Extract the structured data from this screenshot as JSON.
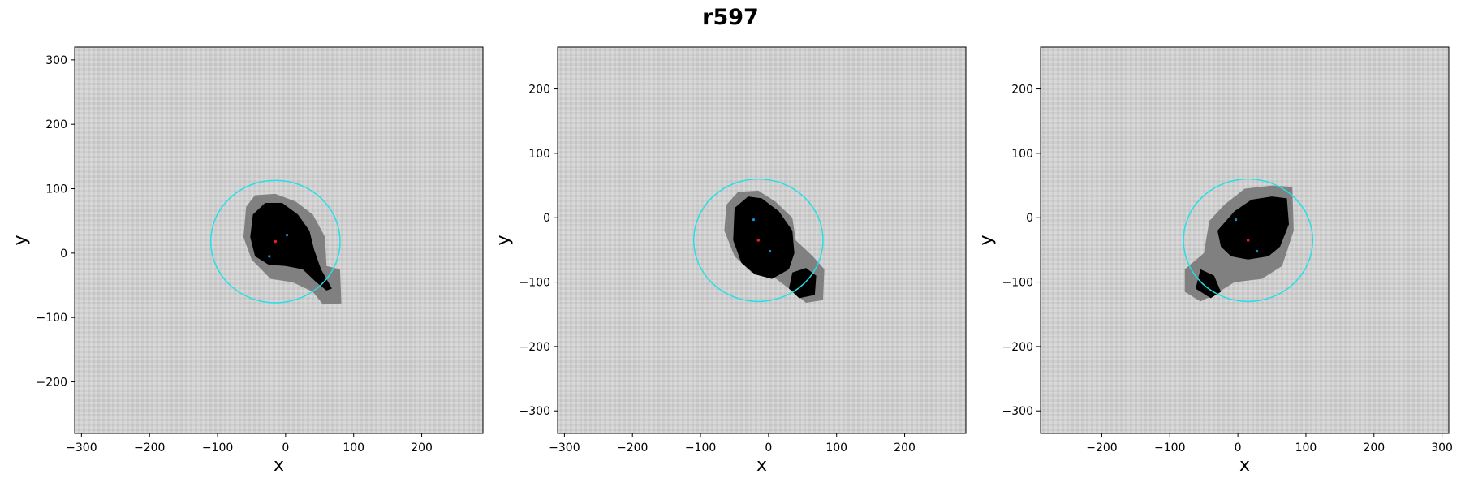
{
  "title": "r597",
  "colors": {
    "background_gray": "#cfcfcf",
    "mask_gray": "#808080",
    "blob_black": "#000000",
    "circle_cyan": "#22e0e8",
    "center_red": "#e02020",
    "marker_blue": "#1f8fd0"
  },
  "chart_data": [
    {
      "type": "scatter",
      "xlabel": "x",
      "ylabel": "y",
      "xlim": [
        -310,
        290
      ],
      "ylim": [
        -280,
        320
      ],
      "xticks": [
        -300,
        -200,
        -100,
        0,
        100,
        200
      ],
      "yticks": [
        300,
        200,
        100,
        0,
        -100,
        -200
      ],
      "circle": {
        "cx": -15,
        "cy": 18,
        "r": 95
      },
      "center_point": [
        -15,
        18
      ],
      "markers": [
        [
          2,
          28
        ],
        [
          -24,
          -5
        ]
      ],
      "mask": [
        [
          -58,
          72
        ],
        [
          -45,
          90
        ],
        [
          -15,
          92
        ],
        [
          15,
          80
        ],
        [
          40,
          60
        ],
        [
          58,
          25
        ],
        [
          60,
          -20
        ],
        [
          80,
          -25
        ],
        [
          82,
          -78
        ],
        [
          55,
          -80
        ],
        [
          40,
          -60
        ],
        [
          10,
          -45
        ],
        [
          -22,
          -40
        ],
        [
          -50,
          -10
        ],
        [
          -62,
          25
        ]
      ],
      "blob": [
        [
          -48,
          60
        ],
        [
          -30,
          78
        ],
        [
          -5,
          78
        ],
        [
          18,
          60
        ],
        [
          35,
          35
        ],
        [
          42,
          5
        ],
        [
          52,
          -25
        ],
        [
          68,
          -55
        ],
        [
          60,
          -58
        ],
        [
          45,
          -45
        ],
        [
          25,
          -25
        ],
        [
          0,
          -20
        ],
        [
          -25,
          -18
        ],
        [
          -45,
          -5
        ],
        [
          -52,
          25
        ]
      ]
    },
    {
      "type": "scatter",
      "xlabel": "x",
      "ylabel": "y",
      "xlim": [
        -310,
        290
      ],
      "ylim": [
        -335,
        265
      ],
      "xticks": [
        -300,
        -200,
        -100,
        0,
        100,
        200
      ],
      "yticks": [
        200,
        100,
        0,
        -100,
        -200,
        -300
      ],
      "circle": {
        "cx": -15,
        "cy": -35,
        "r": 95
      },
      "center_point": [
        -15,
        -35
      ],
      "markers": [
        [
          -22,
          -3
        ],
        [
          2,
          -52
        ]
      ],
      "mask": [
        [
          -62,
          20
        ],
        [
          -45,
          40
        ],
        [
          -15,
          42
        ],
        [
          10,
          25
        ],
        [
          35,
          0
        ],
        [
          40,
          -35
        ],
        [
          65,
          -60
        ],
        [
          82,
          -80
        ],
        [
          80,
          -128
        ],
        [
          55,
          -132
        ],
        [
          30,
          -110
        ],
        [
          5,
          -90
        ],
        [
          -25,
          -85
        ],
        [
          -50,
          -60
        ],
        [
          -65,
          -20
        ]
      ],
      "blob": [
        [
          -50,
          15
        ],
        [
          -30,
          33
        ],
        [
          -10,
          30
        ],
        [
          15,
          10
        ],
        [
          35,
          -20
        ],
        [
          38,
          -55
        ],
        [
          30,
          -80
        ],
        [
          5,
          -95
        ],
        [
          -20,
          -88
        ],
        [
          -40,
          -70
        ],
        [
          -52,
          -35
        ]
      ],
      "blob2": [
        [
          35,
          -85
        ],
        [
          55,
          -78
        ],
        [
          70,
          -90
        ],
        [
          68,
          -120
        ],
        [
          45,
          -125
        ],
        [
          30,
          -110
        ]
      ]
    },
    {
      "type": "scatter",
      "xlabel": "x",
      "ylabel": "y",
      "xlim": [
        -290,
        310
      ],
      "ylim": [
        -335,
        265
      ],
      "xticks": [
        -200,
        -100,
        0,
        100,
        200,
        300
      ],
      "yticks": [
        200,
        100,
        0,
        -100,
        -200,
        -300
      ],
      "circle": {
        "cx": 15,
        "cy": -35,
        "r": 95
      },
      "center_point": [
        15,
        -35
      ],
      "markers": [
        [
          -3,
          -3
        ],
        [
          28,
          -52
        ]
      ],
      "mask": [
        [
          -42,
          -5
        ],
        [
          -20,
          20
        ],
        [
          10,
          45
        ],
        [
          50,
          50
        ],
        [
          80,
          48
        ],
        [
          82,
          -20
        ],
        [
          65,
          -75
        ],
        [
          35,
          -95
        ],
        [
          -5,
          -100
        ],
        [
          -35,
          -120
        ],
        [
          -55,
          -130
        ],
        [
          -78,
          -115
        ],
        [
          -78,
          -80
        ],
        [
          -50,
          -55
        ]
      ],
      "blob": [
        [
          -30,
          -20
        ],
        [
          -5,
          10
        ],
        [
          20,
          28
        ],
        [
          50,
          33
        ],
        [
          72,
          30
        ],
        [
          75,
          -10
        ],
        [
          62,
          -45
        ],
        [
          45,
          -60
        ],
        [
          15,
          -65
        ],
        [
          -10,
          -60
        ],
        [
          -25,
          -45
        ]
      ],
      "blob2": [
        [
          -55,
          -80
        ],
        [
          -35,
          -90
        ],
        [
          -25,
          -115
        ],
        [
          -40,
          -125
        ],
        [
          -62,
          -110
        ]
      ]
    }
  ]
}
